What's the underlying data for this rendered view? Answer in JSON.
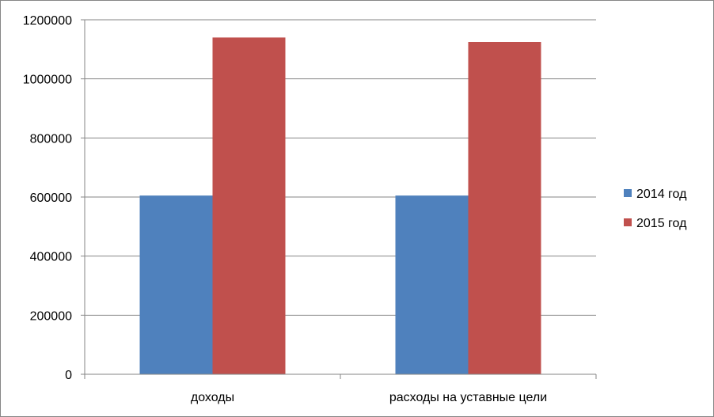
{
  "chart_data": {
    "type": "bar",
    "categories": [
      "доходы",
      "расходы на уставные цели"
    ],
    "series": [
      {
        "name": "2014 год",
        "color": "#4F81BD",
        "values": [
          605000,
          605000
        ]
      },
      {
        "name": "2015 год",
        "color": "#C0504D",
        "values": [
          1140000,
          1125000
        ]
      }
    ],
    "ylim": [
      0,
      1200000
    ],
    "yticks": [
      "0",
      "200000",
      "400000",
      "600000",
      "800000",
      "1000000",
      "1200000"
    ],
    "grid": true,
    "legend_position": "right"
  }
}
